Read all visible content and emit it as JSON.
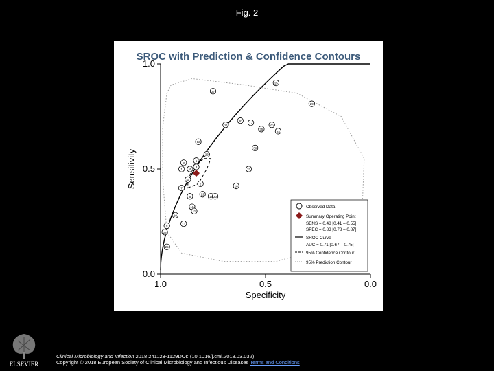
{
  "page": {
    "title": "Fig. 2",
    "citation_journal": "Clinical Microbiology and Infection",
    "citation_details": " 2018 241123-1129DOI: (10.1016/j.cmi.2018.03.032)",
    "copyright": "Copyright © 2018 European Society of Clinical Microbiology and Infectious Diseases",
    "terms_link": "Terms and Conditions",
    "publisher": "ELSEVIER"
  },
  "chart_data": {
    "type": "scatter",
    "title": "SROC with Prediction & Confidence Contours",
    "xlabel": "Specificity",
    "ylabel": "Sensitivity",
    "xlim": [
      1.0,
      0.0
    ],
    "ylim": [
      0.0,
      1.0
    ],
    "x_ticks": [
      "1.0",
      "0.5",
      "0.0"
    ],
    "y_ticks": [
      "0.0",
      "0.5",
      "1.0"
    ],
    "points": [
      {
        "label": "15",
        "spec": 0.45,
        "sens": 0.91
      },
      {
        "label": "29",
        "spec": 0.28,
        "sens": 0.81
      },
      {
        "label": "27",
        "spec": 0.75,
        "sens": 0.87
      },
      {
        "label": "36",
        "spec": 0.62,
        "sens": 0.73
      },
      {
        "label": "17",
        "spec": 0.57,
        "sens": 0.72
      },
      {
        "label": "33",
        "spec": 0.69,
        "sens": 0.71
      },
      {
        "label": "26",
        "spec": 0.47,
        "sens": 0.71
      },
      {
        "label": "35",
        "spec": 0.52,
        "sens": 0.69
      },
      {
        "label": "24",
        "spec": 0.44,
        "sens": 0.68
      },
      {
        "label": "12",
        "spec": 0.82,
        "sens": 0.63
      },
      {
        "label": "30",
        "spec": 0.55,
        "sens": 0.6
      },
      {
        "label": "23",
        "spec": 0.78,
        "sens": 0.57
      },
      {
        "label": "5",
        "spec": 0.83,
        "sens": 0.54
      },
      {
        "label": "8",
        "spec": 0.89,
        "sens": 0.53
      },
      {
        "label": "4",
        "spec": 0.86,
        "sens": 0.5
      },
      {
        "label": "1",
        "spec": 0.9,
        "sens": 0.5
      },
      {
        "label": "3",
        "spec": 0.83,
        "sens": 0.51
      },
      {
        "label": "32",
        "spec": 0.58,
        "sens": 0.5
      },
      {
        "label": "34",
        "spec": 0.87,
        "sens": 0.45
      },
      {
        "label": "2",
        "spec": 0.81,
        "sens": 0.43
      },
      {
        "label": "7",
        "spec": 0.9,
        "sens": 0.41
      },
      {
        "label": "16",
        "spec": 0.64,
        "sens": 0.42
      },
      {
        "label": "22",
        "spec": 0.8,
        "sens": 0.38
      },
      {
        "label": "6",
        "spec": 0.86,
        "sens": 0.37
      },
      {
        "label": "19",
        "spec": 0.76,
        "sens": 0.37
      },
      {
        "label": "20",
        "spec": 0.74,
        "sens": 0.37
      },
      {
        "label": "18",
        "spec": 0.85,
        "sens": 0.32
      },
      {
        "label": "11",
        "spec": 0.84,
        "sens": 0.3
      },
      {
        "label": "10",
        "spec": 0.93,
        "sens": 0.28
      },
      {
        "label": "13",
        "spec": 0.89,
        "sens": 0.24
      },
      {
        "label": "9",
        "spec": 0.97,
        "sens": 0.23
      },
      {
        "label": "28",
        "spec": 0.98,
        "sens": 0.2
      },
      {
        "label": "25",
        "spec": 0.97,
        "sens": 0.13
      }
    ],
    "summary_point": {
      "spec": 0.83,
      "sens": 0.48,
      "color": "#8b1a1a"
    },
    "legend": {
      "position": "bottom-right",
      "items": [
        {
          "label": "Observed Data",
          "marker": "circle"
        },
        {
          "label": "Summary Operating Point",
          "marker": "diamond"
        },
        {
          "label": "SENS = 0.48 [0.41 – 0.55]",
          "marker": "none"
        },
        {
          "label": "SPEC = 0.83 [0.78 – 0.87]",
          "marker": "none"
        },
        {
          "label": "SROC Curve",
          "marker": "solid-line"
        },
        {
          "label": "AUC = 0.71 [0.67 – 0.75]",
          "marker": "none"
        },
        {
          "label": "95% Confidence Contour",
          "marker": "dashed-line"
        },
        {
          "label": "95% Prediction Contour",
          "marker": "dotted-line"
        }
      ]
    },
    "colors": {
      "title": "#3c5a7a",
      "summary": "#8b1a1a",
      "line": "#000000",
      "contour": "#9a9a9a"
    }
  }
}
